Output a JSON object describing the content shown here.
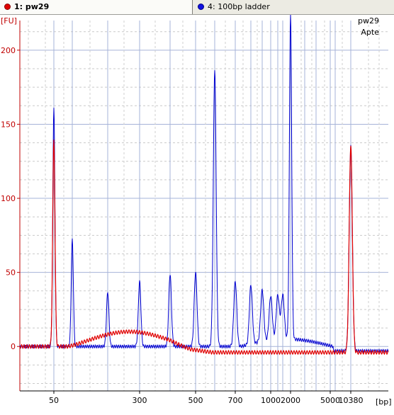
{
  "tabs": [
    {
      "label": "1: pw29",
      "color": "#dd0000",
      "active": true
    },
    {
      "label": "4: 100bp ladder",
      "color": "#1010cc",
      "active": false
    }
  ],
  "chart_data": {
    "type": "line",
    "title": "",
    "ylabel": "[FU]",
    "xlabel": "[bp]",
    "ylim": [
      -30,
      220
    ],
    "yticks": [
      0,
      50,
      100,
      150,
      200
    ],
    "xticks": [
      "50",
      "300",
      "500",
      "700",
      "1000",
      "2000",
      "5000",
      "10380"
    ],
    "annotations": [
      "pw29",
      "Apte"
    ],
    "grid": true,
    "ladder_peaks_bp": [
      "50",
      "100",
      "200",
      "300",
      "400",
      "500",
      "600",
      "700",
      "800",
      "900",
      "1000",
      "1200",
      "1500",
      "2000",
      "3000",
      "4000",
      "5000",
      "7000",
      "10380"
    ],
    "series": [
      {
        "name": "1: pw29",
        "color": "#e00000",
        "baseline": 0,
        "points": [
          {
            "bp": "20",
            "fu": 0
          },
          {
            "bp": "45",
            "fu": 2
          },
          {
            "bp": "50",
            "fu": 140
          },
          {
            "bp": "60",
            "fu": 0
          },
          {
            "bp": "100",
            "fu": 0
          },
          {
            "bp": "200",
            "fu": 10
          },
          {
            "bp": "500",
            "fu": 0
          },
          {
            "bp": "2000",
            "fu": -4
          },
          {
            "bp": "7000",
            "fu": -4
          },
          {
            "bp": "10380",
            "fu": 140
          },
          {
            "bp": "12000",
            "fu": -4
          }
        ]
      },
      {
        "name": "4: 100bp ladder",
        "color": "#0000d0",
        "points": [
          {
            "bp": "50",
            "fu": 162
          },
          {
            "bp": "100",
            "fu": 72
          },
          {
            "bp": "200",
            "fu": 37
          },
          {
            "bp": "300",
            "fu": 44
          },
          {
            "bp": "400",
            "fu": 49
          },
          {
            "bp": "500",
            "fu": 50
          },
          {
            "bp": "600",
            "fu": 187
          },
          {
            "bp": "700",
            "fu": 44
          },
          {
            "bp": "800",
            "fu": 40
          },
          {
            "bp": "900",
            "fu": 35
          },
          {
            "bp": "1000",
            "fu": 30
          },
          {
            "bp": "1200",
            "fu": 30
          },
          {
            "bp": "1500",
            "fu": 30
          },
          {
            "bp": "2000",
            "fu": 220
          },
          {
            "bp": "10380",
            "fu": 138
          }
        ]
      }
    ]
  }
}
